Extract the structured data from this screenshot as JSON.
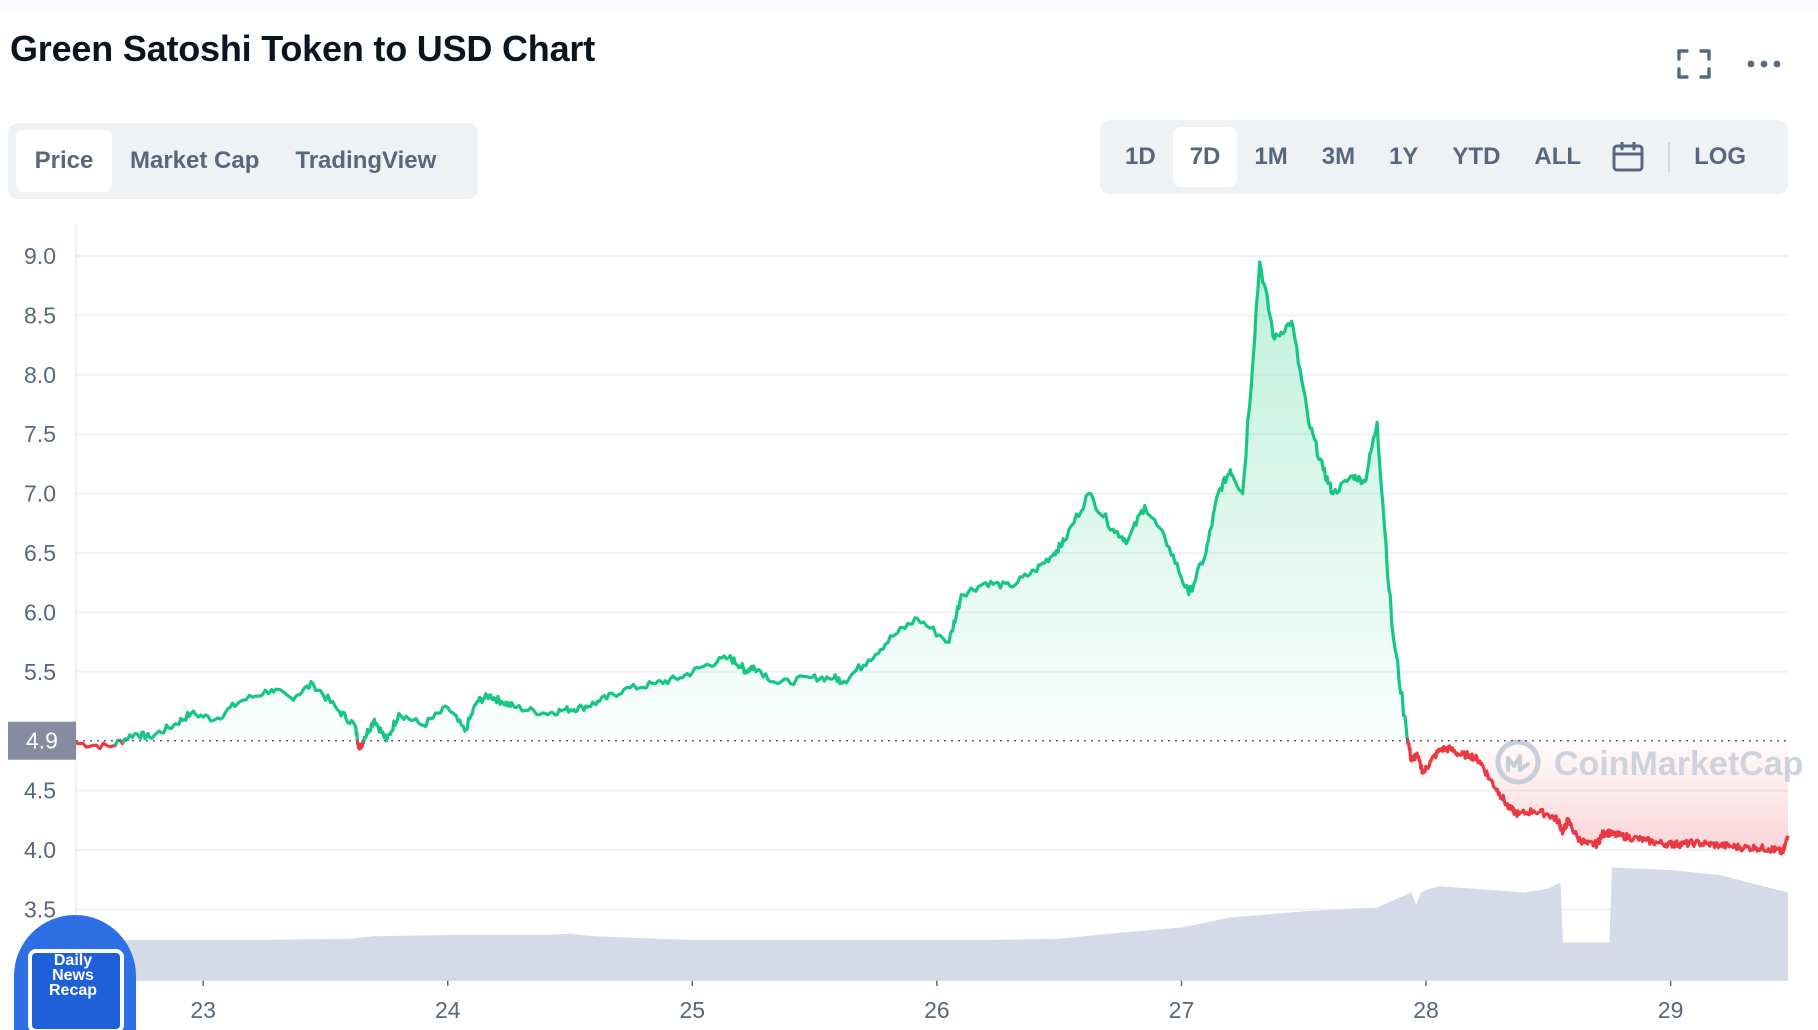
{
  "header": {
    "title": "Green Satoshi Token to USD Chart"
  },
  "view_tabs": [
    {
      "label": "Price",
      "active": true
    },
    {
      "label": "Market Cap",
      "active": false
    },
    {
      "label": "TradingView",
      "active": false
    }
  ],
  "range_tabs": [
    {
      "label": "1D",
      "active": false
    },
    {
      "label": "7D",
      "active": true
    },
    {
      "label": "1M",
      "active": false
    },
    {
      "label": "3M",
      "active": false
    },
    {
      "label": "1Y",
      "active": false
    },
    {
      "label": "YTD",
      "active": false
    },
    {
      "label": "ALL",
      "active": false
    }
  ],
  "log_label": "LOG",
  "icons": {
    "fullscreen": "fullscreen-icon",
    "more": "more-dots-icon",
    "calendar": "calendar-icon"
  },
  "watermark": "CoinMarketCap",
  "badge": {
    "lines": [
      "Daily",
      "News",
      "Recap"
    ]
  },
  "colors": {
    "up": "#16c784",
    "down": "#ea3943",
    "volume": "#cfd6e4",
    "grid": "#eff2f5",
    "axis_text": "#58667e"
  },
  "chart_data": {
    "type": "area",
    "title": "Green Satoshi Token to USD Chart",
    "xlabel": "",
    "ylabel": "",
    "x_tick_labels": [
      "23",
      "24",
      "25",
      "26",
      "27",
      "28",
      "29"
    ],
    "y_tick_labels": [
      "9.0",
      "8.5",
      "8.0",
      "7.5",
      "7.0",
      "6.5",
      "6.0",
      "5.5",
      "4.5",
      "4.0",
      "3.5"
    ],
    "ylim": [
      3.2,
      9.2
    ],
    "xlim": [
      22.48,
      29.48
    ],
    "baseline": {
      "value": 4.92,
      "label": "4.9"
    },
    "grid": true,
    "series": [
      {
        "x": [
          22.48,
          22.62,
          22.72,
          22.78,
          22.88,
          22.95,
          23.05,
          23.15,
          23.28,
          23.36,
          23.45,
          23.55,
          23.62,
          23.64,
          23.66,
          23.7,
          23.75,
          23.8,
          23.9,
          24.0,
          24.07,
          24.12,
          24.17,
          24.22,
          24.28,
          24.4,
          24.48,
          24.55,
          24.62,
          24.72,
          24.85,
          24.95,
          25.05,
          25.15,
          25.2,
          25.22,
          25.25,
          25.35,
          25.48,
          25.58,
          25.62,
          25.72,
          25.82,
          25.92,
          26.05,
          26.1,
          26.2,
          26.3,
          26.4,
          26.48,
          26.52,
          26.62,
          26.72,
          26.78,
          26.85,
          26.95,
          27.03,
          27.1,
          27.15,
          27.2,
          27.25,
          27.32,
          27.38,
          27.45,
          27.52,
          27.58,
          27.62,
          27.7,
          27.75,
          27.8,
          27.86,
          27.92,
          27.94,
          27.96,
          27.99,
          28.02,
          28.06,
          28.1,
          28.14,
          28.18,
          28.22,
          28.26,
          28.3,
          28.34,
          28.38,
          28.44,
          28.5,
          28.54,
          28.56,
          28.58,
          28.62,
          28.66,
          28.7,
          28.72,
          28.74,
          28.76,
          28.8,
          28.85,
          28.9,
          28.95,
          29.0,
          29.02,
          29.05,
          29.1,
          29.15,
          29.2,
          29.25,
          29.3,
          29.35,
          29.4,
          29.43,
          29.46,
          29.48
        ],
        "values": [
          4.9,
          4.87,
          4.98,
          4.95,
          5.05,
          5.15,
          5.1,
          5.25,
          5.35,
          5.28,
          5.4,
          5.18,
          5.05,
          4.85,
          4.95,
          5.1,
          4.92,
          5.15,
          5.05,
          5.2,
          5.0,
          5.25,
          5.3,
          5.25,
          5.2,
          5.15,
          5.18,
          5.2,
          5.25,
          5.35,
          5.4,
          5.45,
          5.55,
          5.62,
          5.55,
          5.5,
          5.55,
          5.4,
          5.45,
          5.45,
          5.42,
          5.6,
          5.8,
          5.95,
          5.75,
          6.15,
          6.25,
          6.22,
          6.35,
          6.5,
          6.6,
          7.0,
          6.7,
          6.6,
          6.9,
          6.55,
          6.15,
          6.5,
          7.0,
          7.2,
          7.0,
          8.95,
          8.3,
          8.45,
          7.6,
          7.2,
          7.0,
          7.15,
          7.1,
          7.6,
          5.9,
          5.0,
          4.75,
          4.8,
          4.65,
          4.75,
          4.85,
          4.85,
          4.8,
          4.8,
          4.75,
          4.6,
          4.48,
          4.35,
          4.3,
          4.33,
          4.3,
          4.25,
          4.15,
          4.25,
          4.1,
          4.05,
          4.05,
          4.13,
          4.15,
          4.13,
          4.12,
          4.1,
          4.08,
          4.06,
          4.05,
          4.05,
          4.05,
          4.06,
          4.05,
          4.04,
          4.03,
          4.02,
          4.02,
          4.01,
          4.0,
          3.98,
          4.12
        ]
      }
    ],
    "volume": {
      "x": [
        22.48,
        22.62,
        22.7,
        23.2,
        23.6,
        23.7,
        24.0,
        24.4,
        24.5,
        24.6,
        25.0,
        25.5,
        26.0,
        26.2,
        26.5,
        26.7,
        27.0,
        27.2,
        27.5,
        27.8,
        27.94,
        27.96,
        27.98,
        28.0,
        28.05,
        28.2,
        28.4,
        28.5,
        28.55,
        28.56,
        28.62,
        28.75,
        28.76,
        29.0,
        29.2,
        29.48
      ],
      "values": [
        0.3,
        0.3,
        0.32,
        0.32,
        0.33,
        0.35,
        0.36,
        0.36,
        0.37,
        0.35,
        0.32,
        0.32,
        0.32,
        0.32,
        0.33,
        0.37,
        0.42,
        0.5,
        0.55,
        0.58,
        0.7,
        0.6,
        0.7,
        0.72,
        0.75,
        0.73,
        0.7,
        0.73,
        0.78,
        0.3,
        0.3,
        0.3,
        0.9,
        0.88,
        0.84,
        0.7
      ]
    }
  }
}
